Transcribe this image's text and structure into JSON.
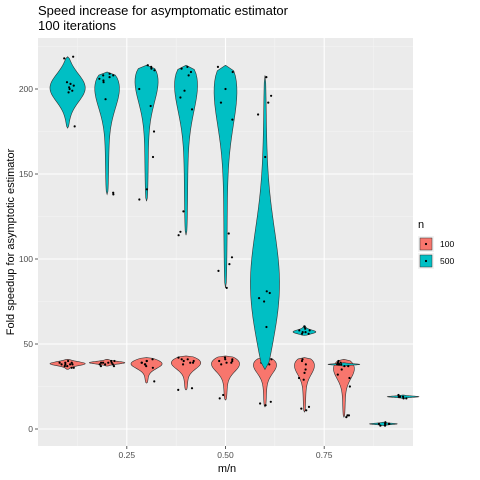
{
  "chart_data": {
    "type": "violin",
    "title": "Speed increase for asymptomatic estimator",
    "subtitle": "100 iterations",
    "xlabel": "m/n",
    "ylabel": "Fold speedup for asymptotic estimator",
    "xlim": [
      0.025,
      0.975
    ],
    "ylim": [
      -10,
      230
    ],
    "x_ticks": [
      0.25,
      0.5,
      0.75
    ],
    "x_tick_labels": [
      "0.25",
      "0.50",
      "0.75"
    ],
    "y_ticks": [
      0,
      50,
      100,
      150,
      200
    ],
    "y_tick_labels": [
      "0",
      "50",
      "100",
      "150",
      "200"
    ],
    "grid": true,
    "legend": {
      "title": "n",
      "position": "right"
    },
    "series": [
      {
        "name": "100",
        "color": "#F8766D",
        "groups": [
          {
            "x": 0.1,
            "min": 35,
            "max": 41,
            "mode": 38.5,
            "width": 0.045,
            "points": [
              39,
              38,
              37,
              40,
              36,
              39,
              38,
              37,
              38,
              39,
              36,
              38
            ]
          },
          {
            "x": 0.2,
            "min": 37,
            "max": 41,
            "mode": 39,
            "width": 0.045,
            "points": [
              39,
              38,
              40,
              37,
              39,
              38,
              39,
              40,
              38,
              37,
              39
            ]
          },
          {
            "x": 0.3,
            "min": 27,
            "max": 42,
            "mode": 39,
            "width": 0.045,
            "points": [
              39,
              40,
              38,
              37,
              41,
              36,
              28,
              39,
              40,
              38
            ]
          },
          {
            "x": 0.4,
            "min": 23,
            "max": 43,
            "mode": 40,
            "width": 0.045,
            "points": [
              40,
              41,
              39,
              38,
              42,
              24,
              23,
              40,
              39,
              41
            ]
          },
          {
            "x": 0.5,
            "min": 17,
            "max": 43,
            "mode": 40,
            "width": 0.045,
            "points": [
              41,
              40,
              39,
              42,
              38,
              20,
              18,
              40,
              41,
              39
            ]
          },
          {
            "x": 0.6,
            "min": 13,
            "max": 42,
            "mode": 40,
            "width": 0.04,
            "points": [
              41,
              40,
              39,
              38,
              15,
              14,
              16,
              40,
              41,
              39
            ]
          },
          {
            "x": 0.7,
            "min": 10,
            "max": 42,
            "mode": 40,
            "width": 0.035,
            "points": [
              41,
              38,
              33,
              29,
              12,
              11,
              13,
              40,
              35,
              30
            ]
          },
          {
            "x": 0.8,
            "min": 7,
            "max": 41,
            "mode": 38,
            "width": 0.035,
            "points": [
              40,
              38,
              35,
              30,
              25,
              8,
              7,
              8,
              39,
              32
            ]
          }
        ]
      },
      {
        "name": "500",
        "color": "#00BFC4",
        "groups": [
          {
            "x": 0.1,
            "min": 177,
            "max": 219,
            "mode": 201,
            "width": 0.045,
            "points": [
              201,
              200,
              203,
              199,
              218,
              219,
              178,
              202,
              198,
              204
            ]
          },
          {
            "x": 0.2,
            "min": 138,
            "max": 210,
            "mode": 207,
            "width": 0.045,
            "points": [
              208,
              207,
              206,
              209,
              205,
              194,
              139,
              138,
              208,
              204
            ]
          },
          {
            "x": 0.3,
            "min": 134,
            "max": 214,
            "mode": 213,
            "width": 0.045,
            "points": [
              213,
              212,
              211,
              200,
              190,
              175,
              160,
              141,
              135,
              214
            ]
          },
          {
            "x": 0.4,
            "min": 114,
            "max": 214,
            "mode": 213,
            "width": 0.045,
            "points": [
              213,
              212,
              210,
              199,
              195,
              188,
              128,
              116,
              114,
              208
            ]
          },
          {
            "x": 0.5,
            "min": 83,
            "max": 214,
            "mode": 213,
            "width": 0.045,
            "points": [
              213,
              210,
              200,
              192,
              182,
              115,
              101,
              97,
              93,
              83
            ]
          },
          {
            "x": 0.6,
            "min": 35,
            "max": 208,
            "mode": 80,
            "width": 0.04,
            "points": [
              207,
              196,
              192,
              185,
              160,
              81,
              80,
              77,
              75,
              60
            ]
          },
          {
            "x": 0.7,
            "min": 55,
            "max": 61,
            "mode": 57,
            "width": 0.03,
            "points": [
              57,
              58,
              56,
              59,
              57,
              60,
              56,
              58
            ]
          },
          {
            "x": 0.8,
            "min": 37,
            "max": 39,
            "mode": 38,
            "width": 0.04,
            "points": [
              38,
              38,
              37,
              39,
              38,
              38,
              37,
              38
            ]
          },
          {
            "x": 0.9,
            "min": 2,
            "max": 4,
            "mode": 3,
            "width": 0.035,
            "points": [
              3,
              3,
              2,
              4,
              3,
              3,
              2,
              3
            ]
          },
          {
            "x": 0.95,
            "min": 18,
            "max": 20,
            "mode": 19,
            "width": 0.04,
            "points": [
              19,
              19,
              18,
              20,
              19,
              19,
              18,
              19
            ]
          }
        ]
      }
    ]
  }
}
